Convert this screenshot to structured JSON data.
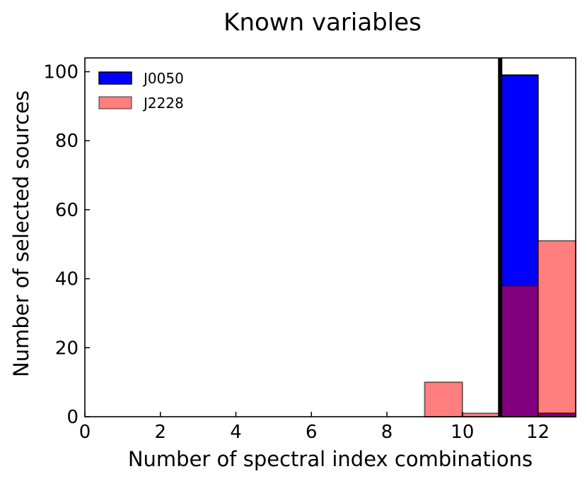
{
  "chart_data": {
    "type": "bar",
    "title": "Known variables",
    "xlabel": "Number of spectral index combinations",
    "ylabel": "Number of selected sources",
    "xlim": [
      0,
      13
    ],
    "ylim": [
      0,
      104
    ],
    "xticks": [
      0,
      2,
      4,
      6,
      8,
      10,
      12
    ],
    "yticks": [
      0,
      20,
      40,
      60,
      80,
      100
    ],
    "grid": false,
    "legend_placement": "top-left",
    "vline_x": 11,
    "series": [
      {
        "name": "J0050",
        "color": "#0000ff",
        "bins": [
          {
            "x0": 9,
            "x1": 10,
            "value": 0
          },
          {
            "x0": 10,
            "x1": 11,
            "value": 0
          },
          {
            "x0": 11,
            "x1": 12,
            "value": 99
          },
          {
            "x0": 12,
            "x1": 13,
            "value": 1
          }
        ]
      },
      {
        "name": "J2228",
        "color": "#ff0000",
        "alpha": 0.5,
        "bins": [
          {
            "x0": 9,
            "x1": 10,
            "value": 10
          },
          {
            "x0": 10,
            "x1": 11,
            "value": 1
          },
          {
            "x0": 11,
            "x1": 12,
            "value": 38
          },
          {
            "x0": 12,
            "x1": 13,
            "value": 51
          }
        ]
      }
    ]
  }
}
